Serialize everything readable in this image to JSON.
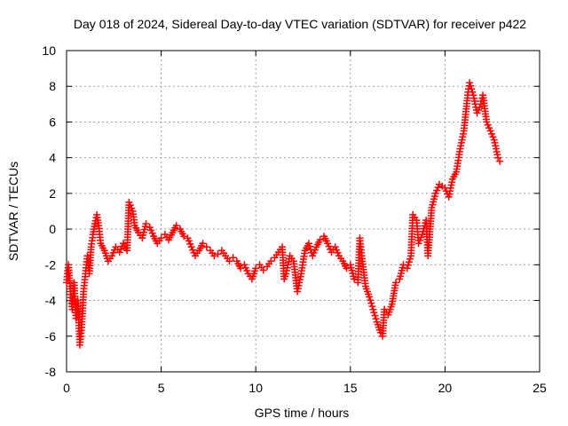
{
  "chart_data": {
    "type": "scatter",
    "title": "Day 018 of 2024, Sidereal Day-to-day VTEC variation (SDTVAR) for receiver p422",
    "xlabel": "GPS time / hours",
    "ylabel": "SDTVAR / TECUs",
    "xlim": [
      0,
      25
    ],
    "ylim": [
      -8,
      10
    ],
    "xticks": [
      0,
      5,
      10,
      15,
      20,
      25
    ],
    "yticks": [
      -8,
      -6,
      -4,
      -2,
      0,
      2,
      4,
      6,
      8,
      10
    ],
    "grid": true,
    "marker": "+",
    "colors": {
      "series": "#ff0000",
      "grid": "#a0a0a0",
      "axis": "#000000"
    },
    "series": [
      {
        "name": "SDTVAR",
        "points": [
          [
            0.0,
            -3.0
          ],
          [
            0.1,
            -2.0
          ],
          [
            0.2,
            -3.5
          ],
          [
            0.3,
            -4.5
          ],
          [
            0.4,
            -3.0
          ],
          [
            0.5,
            -5.0
          ],
          [
            0.6,
            -4.0
          ],
          [
            0.7,
            -6.5
          ],
          [
            0.8,
            -5.5
          ],
          [
            0.9,
            -3.5
          ],
          [
            1.0,
            -2.5
          ],
          [
            1.1,
            -1.5
          ],
          [
            1.2,
            -2.5
          ],
          [
            1.3,
            -1.0
          ],
          [
            1.4,
            -0.3
          ],
          [
            1.5,
            0.3
          ],
          [
            1.6,
            0.8
          ],
          [
            1.7,
            0.2
          ],
          [
            1.8,
            -0.8
          ],
          [
            2.0,
            -1.2
          ],
          [
            2.2,
            -1.8
          ],
          [
            2.4,
            -1.5
          ],
          [
            2.6,
            -1.0
          ],
          [
            2.8,
            -1.3
          ],
          [
            3.0,
            -0.8
          ],
          [
            3.2,
            -1.2
          ],
          [
            3.3,
            1.5
          ],
          [
            3.5,
            1.0
          ],
          [
            3.6,
            0.2
          ],
          [
            3.8,
            -0.2
          ],
          [
            4.0,
            -0.5
          ],
          [
            4.2,
            0.3
          ],
          [
            4.4,
            0.1
          ],
          [
            4.6,
            -0.4
          ],
          [
            4.8,
            -0.8
          ],
          [
            5.0,
            -0.5
          ],
          [
            5.2,
            -0.3
          ],
          [
            5.4,
            -0.6
          ],
          [
            5.6,
            -0.2
          ],
          [
            5.8,
            0.2
          ],
          [
            6.0,
            0.0
          ],
          [
            6.2,
            -0.4
          ],
          [
            6.4,
            -0.5
          ],
          [
            6.6,
            -1.0
          ],
          [
            6.8,
            -1.5
          ],
          [
            7.0,
            -1.2
          ],
          [
            7.2,
            -0.8
          ],
          [
            7.4,
            -1.0
          ],
          [
            7.6,
            -1.2
          ],
          [
            7.8,
            -1.5
          ],
          [
            8.0,
            -1.4
          ],
          [
            8.2,
            -1.2
          ],
          [
            8.4,
            -1.5
          ],
          [
            8.6,
            -1.8
          ],
          [
            8.8,
            -1.6
          ],
          [
            9.0,
            -1.8
          ],
          [
            9.2,
            -2.2
          ],
          [
            9.4,
            -2.0
          ],
          [
            9.6,
            -2.5
          ],
          [
            9.8,
            -2.8
          ],
          [
            10.0,
            -2.2
          ],
          [
            10.2,
            -2.0
          ],
          [
            10.4,
            -2.3
          ],
          [
            10.6,
            -2.1
          ],
          [
            10.8,
            -1.8
          ],
          [
            11.0,
            -1.6
          ],
          [
            11.2,
            -1.3
          ],
          [
            11.4,
            -1.0
          ],
          [
            11.5,
            -2.8
          ],
          [
            11.6,
            -2.5
          ],
          [
            11.8,
            -1.5
          ],
          [
            12.0,
            -1.8
          ],
          [
            12.2,
            -3.5
          ],
          [
            12.4,
            -2.5
          ],
          [
            12.6,
            -1.2
          ],
          [
            12.8,
            -0.8
          ],
          [
            13.0,
            -1.5
          ],
          [
            13.2,
            -1.0
          ],
          [
            13.4,
            -0.6
          ],
          [
            13.6,
            -0.4
          ],
          [
            13.8,
            -0.8
          ],
          [
            14.0,
            -1.3
          ],
          [
            14.2,
            -1.0
          ],
          [
            14.4,
            -1.5
          ],
          [
            14.6,
            -1.8
          ],
          [
            14.8,
            -2.2
          ],
          [
            15.0,
            -2.0
          ],
          [
            15.2,
            -2.8
          ],
          [
            15.4,
            -3.0
          ],
          [
            15.5,
            -0.5
          ],
          [
            15.6,
            -1.5
          ],
          [
            15.8,
            -3.2
          ],
          [
            16.0,
            -3.8
          ],
          [
            16.2,
            -4.5
          ],
          [
            16.4,
            -5.2
          ],
          [
            16.6,
            -5.8
          ],
          [
            16.7,
            -6.0
          ],
          [
            16.8,
            -4.5
          ],
          [
            17.0,
            -4.8
          ],
          [
            17.2,
            -4.2
          ],
          [
            17.4,
            -3.0
          ],
          [
            17.6,
            -2.8
          ],
          [
            17.8,
            -2.0
          ],
          [
            18.0,
            -2.2
          ],
          [
            18.2,
            -1.5
          ],
          [
            18.3,
            0.8
          ],
          [
            18.5,
            0.5
          ],
          [
            18.6,
            -0.8
          ],
          [
            18.8,
            -0.3
          ],
          [
            19.0,
            0.5
          ],
          [
            19.1,
            -1.5
          ],
          [
            19.3,
            1.2
          ],
          [
            19.5,
            2.0
          ],
          [
            19.7,
            2.5
          ],
          [
            20.0,
            2.3
          ],
          [
            20.2,
            1.8
          ],
          [
            20.4,
            2.8
          ],
          [
            20.6,
            3.2
          ],
          [
            20.8,
            4.5
          ],
          [
            21.0,
            5.5
          ],
          [
            21.2,
            7.5
          ],
          [
            21.3,
            8.2
          ],
          [
            21.5,
            7.5
          ],
          [
            21.7,
            6.5
          ],
          [
            21.9,
            7.0
          ],
          [
            22.0,
            7.5
          ],
          [
            22.2,
            6.0
          ],
          [
            22.4,
            5.5
          ],
          [
            22.6,
            5.0
          ],
          [
            22.8,
            4.0
          ],
          [
            22.9,
            3.8
          ]
        ]
      }
    ]
  }
}
